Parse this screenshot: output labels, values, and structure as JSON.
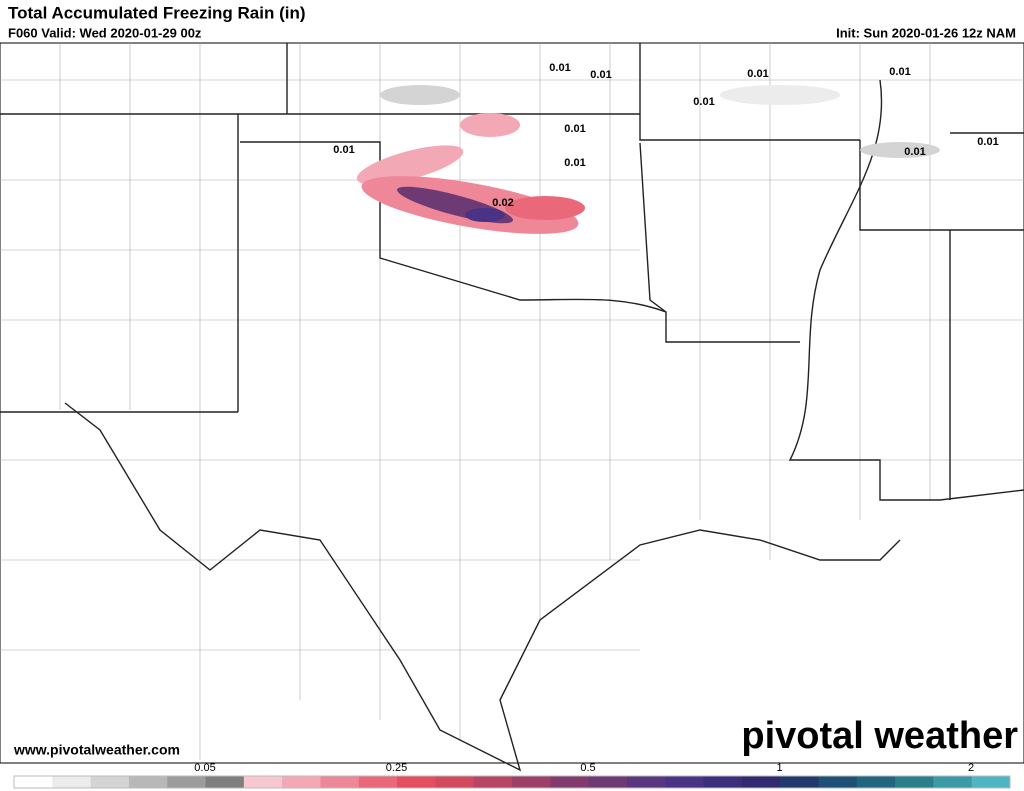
{
  "header": {
    "title": "Total Accumulated Freezing Rain (in)",
    "valid": "F060 Valid: Wed 2020-01-29 00z",
    "init": "Init: Sun 2020-01-26 12z NAM"
  },
  "map": {
    "point_labels": [
      0.01,
      0.01,
      0.01,
      0.01,
      0.01,
      0.01,
      0.01,
      0.01,
      0.01,
      0.01,
      0.02
    ]
  },
  "footer": {
    "website": "www.pivotalweather.com",
    "brand": "pivotal weather"
  },
  "colorbar": {
    "colors": [
      "#ffffff",
      "#ececec",
      "#d4d4d4",
      "#b8b8b8",
      "#9c9c9c",
      "#7f7f7f",
      "#f7c8d0",
      "#f3a8b6",
      "#ee8797",
      "#e9687a",
      "#e44e5e",
      "#d14a5e",
      "#b74563",
      "#9d4068",
      "#833b6d",
      "#6d3a74",
      "#5a3680",
      "#4a3284",
      "#3d2d7d",
      "#312a70",
      "#23386b",
      "#1f4f74",
      "#1f667e",
      "#2a7f8a",
      "#3b9aa5",
      "#4fb5c5"
    ],
    "ticks": [
      0.05,
      0.25,
      0.5,
      1,
      2
    ]
  }
}
